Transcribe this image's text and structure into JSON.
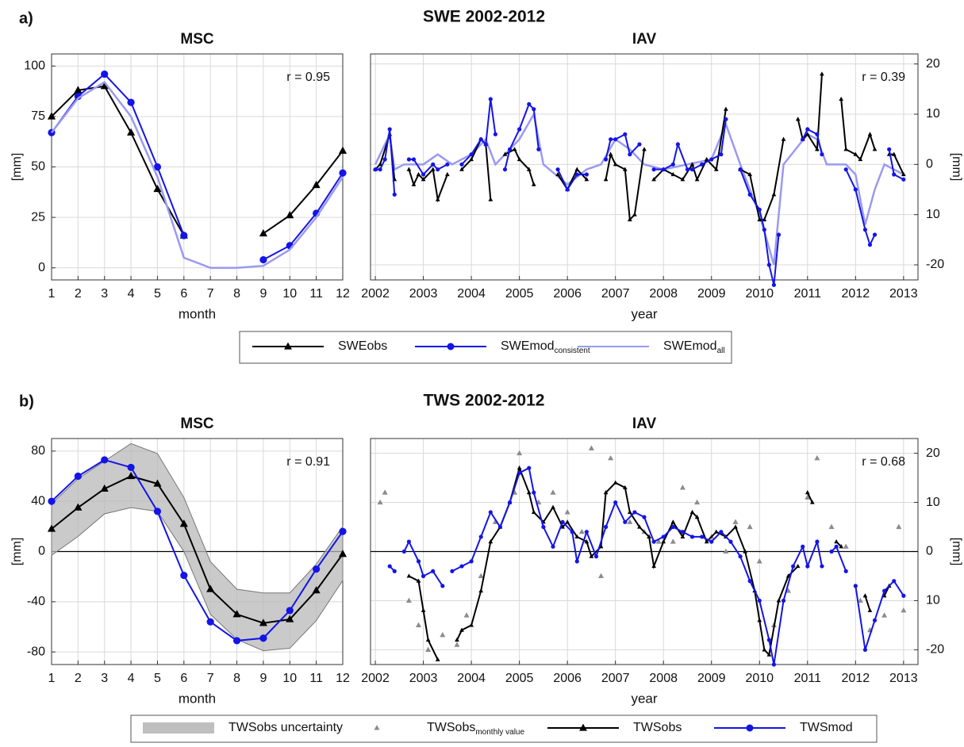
{
  "panels": [
    {
      "label": "a)",
      "title": "SWE 2002-2012"
    },
    {
      "label": "b)",
      "title": "TWS 2002-2012"
    }
  ],
  "chart_data": [
    {
      "type": "line",
      "title": "MSC",
      "xlabel": "month",
      "ylabel": "[mm]",
      "annotation": "r = 0.95",
      "x": [
        1,
        2,
        3,
        4,
        5,
        6,
        7,
        8,
        9,
        10,
        11,
        12
      ],
      "xlim": [
        1,
        12
      ],
      "xticks": [
        1,
        2,
        3,
        4,
        5,
        6,
        7,
        8,
        9,
        10,
        11,
        12
      ],
      "ylim": [
        -6,
        106
      ],
      "yticks": [
        0,
        25,
        50,
        75,
        100
      ],
      "grid": true,
      "series": [
        {
          "name": "SWEobs",
          "color": "#000000",
          "marker": "triangle",
          "values": [
            75,
            88,
            90,
            67,
            39,
            16,
            null,
            null,
            17,
            26,
            41,
            58
          ]
        },
        {
          "name": "SWEmod",
          "name_sub": "consistent",
          "color": "#1414e6",
          "marker": "circle",
          "values": [
            67,
            85,
            96,
            82,
            50,
            16,
            null,
            null,
            4,
            11,
            27,
            47
          ]
        },
        {
          "name": "SWEmod",
          "name_sub": "all",
          "color": "#9a9af0",
          "marker": null,
          "values": [
            67,
            84,
            92,
            75,
            45,
            5,
            0,
            0,
            1,
            9,
            25,
            45
          ]
        }
      ]
    },
    {
      "type": "line",
      "title": "IAV",
      "xlabel": "year",
      "ylabel": "[mm]",
      "annotation": "r = 0.39",
      "yaxis_side": "right",
      "xlim": [
        2001.9,
        2013.3
      ],
      "xticks": [
        2002,
        2003,
        2004,
        2005,
        2006,
        2007,
        2008,
        2009,
        2010,
        2011,
        2012,
        2013
      ],
      "ylim": [
        -23,
        22
      ],
      "yticks": [
        20,
        10,
        0,
        {
          "value": -10,
          "label": "10"
        },
        -20
      ],
      "grid": true,
      "series": [
        {
          "name": "SWEmod",
          "name_sub": "all",
          "color": "#9a9af0",
          "marker": null,
          "x": [
            2002.0,
            2002.3,
            2002.4,
            2002.6,
            2003.0,
            2003.3,
            2003.6,
            2004.0,
            2004.3,
            2004.5,
            2005.0,
            2005.3,
            2005.5,
            2006.0,
            2006.4,
            2006.7,
            2007.0,
            2007.3,
            2007.6,
            2008.0,
            2008.5,
            2009.0,
            2009.3,
            2009.6,
            2010.0,
            2010.3,
            2010.5,
            2011.0,
            2011.2,
            2011.4,
            2011.8,
            2012.0,
            2012.2,
            2012.4,
            2012.6,
            2013.0
          ],
          "values": [
            0,
            6,
            -1,
            0,
            0,
            2,
            0,
            2,
            5,
            0,
            5,
            10,
            0,
            -4,
            -1,
            0,
            5,
            3,
            0,
            -1,
            0,
            1,
            8,
            0,
            -10,
            -20,
            0,
            6,
            5,
            0,
            0,
            -2,
            -12,
            -5,
            0,
            -2
          ]
        },
        {
          "name": "SWEobs",
          "color": "#000000",
          "marker": "triangle",
          "x": [
            2002.0,
            2002.1,
            2002.3,
            2002.4,
            2002.5,
            2002.7,
            2002.8,
            2002.9,
            2003.0,
            2003.2,
            2003.3,
            2003.5,
            2003.6,
            2003.8,
            2004.0,
            2004.2,
            2004.3,
            2004.4,
            2004.5,
            2004.7,
            2004.9,
            2005.0,
            2005.2,
            2005.3,
            2005.5,
            2005.8,
            2006.0,
            2006.2,
            2006.4,
            2006.6,
            2006.8,
            2006.9,
            2007.0,
            2007.2,
            2007.3,
            2007.4,
            2007.6,
            2007.7,
            2007.8,
            2008.0,
            2008.2,
            2008.4,
            2008.6,
            2008.7,
            2008.9,
            2009.1,
            2009.3,
            2009.4,
            2009.6,
            2009.8,
            2010.0,
            2010.1,
            2010.3,
            2010.5,
            2010.6,
            2010.8,
            2010.9,
            2011.0,
            2011.2,
            2011.3,
            2011.5,
            2011.7,
            2011.8,
            2012.0,
            2012.1,
            2012.3,
            2012.4,
            2012.5,
            2012.7,
            2012.8,
            2013.0
          ],
          "values": [
            -1,
            0,
            6,
            -3,
            null,
            -1,
            -4,
            -2,
            -3,
            -1,
            -7,
            -2,
            null,
            -1,
            1,
            5,
            4,
            -7,
            null,
            2,
            3,
            1,
            -1,
            -4,
            null,
            -2,
            -5,
            -1,
            -3,
            null,
            -3,
            2,
            0,
            -1,
            -11,
            -10,
            3,
            null,
            -3,
            -1,
            -2,
            -3,
            0,
            -3,
            1,
            -1,
            11,
            null,
            -1,
            -2,
            -11,
            -11,
            -6,
            5,
            null,
            9,
            5,
            6,
            3,
            18,
            null,
            13,
            3,
            2,
            1,
            6,
            3,
            null,
            2,
            2,
            -2
          ]
        },
        {
          "name": "SWEmod",
          "name_sub": "consistent",
          "color": "#1414e6",
          "marker": "circle",
          "x": [
            2002.0,
            2002.1,
            2002.2,
            2002.3,
            2002.4,
            2002.5,
            2002.7,
            2002.8,
            2003.0,
            2003.2,
            2003.3,
            2003.5,
            2003.6,
            2003.8,
            2004.0,
            2004.2,
            2004.3,
            2004.4,
            2004.5,
            2004.6,
            2004.7,
            2004.8,
            2005.0,
            2005.2,
            2005.3,
            2005.4,
            2005.6,
            2005.8,
            2006.0,
            2006.2,
            2006.4,
            2006.6,
            2006.8,
            2006.9,
            2007.0,
            2007.2,
            2007.3,
            2007.5,
            2007.6,
            2007.8,
            2008.0,
            2008.2,
            2008.3,
            2008.5,
            2008.6,
            2008.8,
            2009.0,
            2009.2,
            2009.3,
            2009.5,
            2009.6,
            2009.8,
            2010.0,
            2010.1,
            2010.2,
            2010.3,
            2010.4,
            2010.6,
            2010.9,
            2011.0,
            2011.2,
            2011.3,
            2011.5,
            2011.8,
            2012.0,
            2012.2,
            2012.3,
            2012.4,
            2012.5,
            2012.7,
            2012.8,
            2013.0
          ],
          "values": [
            -1,
            -1,
            1,
            7,
            -6,
            null,
            1,
            1,
            -2,
            0,
            -1,
            0,
            null,
            0,
            2,
            5,
            4,
            13,
            6,
            null,
            -1,
            3,
            7,
            12,
            11,
            3,
            null,
            -1,
            -5,
            -2,
            -2,
            null,
            1,
            5,
            5,
            6,
            2,
            4,
            null,
            -1,
            -1,
            0,
            4,
            -1,
            -1,
            0,
            1,
            2,
            9,
            null,
            -1,
            -6,
            -9,
            -13,
            -20,
            -24,
            -14,
            null,
            5,
            7,
            6,
            2,
            null,
            -1,
            -5,
            -13,
            -16,
            -14,
            null,
            3,
            -2,
            -3
          ]
        }
      ]
    },
    {
      "type": "line",
      "title": "MSC",
      "xlabel": "month",
      "ylabel": "[mm]",
      "annotation": "r = 0.91",
      "zero_line": true,
      "x": [
        1,
        2,
        3,
        4,
        5,
        6,
        7,
        8,
        9,
        10,
        11,
        12
      ],
      "xlim": [
        1,
        12
      ],
      "xticks": [
        1,
        2,
        3,
        4,
        5,
        6,
        7,
        8,
        9,
        10,
        11,
        12
      ],
      "ylim": [
        -90,
        90
      ],
      "yticks": [
        -80,
        -40,
        0,
        40,
        80
      ],
      "grid": true,
      "band": {
        "name": "TWSobs uncertainty",
        "color": "#b8b8b8",
        "lower": [
          -3,
          12,
          30,
          35,
          32,
          0,
          -50,
          -70,
          -79,
          -77,
          -55,
          -23
        ],
        "upper": [
          38,
          58,
          72,
          86,
          78,
          43,
          -8,
          -30,
          -33,
          -33,
          -10,
          20
        ]
      },
      "series": [
        {
          "name": "TWSobs",
          "color": "#000000",
          "marker": "triangle",
          "values": [
            18,
            35,
            50,
            60,
            54,
            22,
            -30,
            -50,
            -57,
            -54,
            -31,
            -2
          ]
        },
        {
          "name": "TWSmod",
          "color": "#1414e6",
          "marker": "circle",
          "values": [
            40,
            60,
            73,
            67,
            32,
            -19,
            -56,
            -71,
            -69,
            -47,
            -14,
            16
          ]
        }
      ]
    },
    {
      "type": "line",
      "title": "IAV",
      "xlabel": "year",
      "ylabel": "[mm]",
      "annotation": "r = 0.68",
      "yaxis_side": "right",
      "zero_line": true,
      "xlim": [
        2001.9,
        2013.3
      ],
      "xticks": [
        2002,
        2003,
        2004,
        2005,
        2006,
        2007,
        2008,
        2009,
        2010,
        2011,
        2012,
        2013
      ],
      "ylim": [
        -23,
        23
      ],
      "yticks": [
        20,
        10,
        0,
        {
          "value": -10,
          "label": "10"
        },
        -20
      ],
      "grid": true,
      "series": [
        {
          "name": "TWSobs",
          "name_sub": "monthly value",
          "color": "#8c8c8c",
          "marker": "triangle",
          "line": false,
          "x": [
            2002.1,
            2002.2,
            2002.7,
            2002.9,
            2003.1,
            2003.4,
            2003.7,
            2003.9,
            2004.2,
            2004.5,
            2004.9,
            2005.0,
            2005.4,
            2005.7,
            2006.0,
            2006.3,
            2006.5,
            2006.7,
            2006.9,
            2007.3,
            2007.6,
            2007.9,
            2008.2,
            2008.4,
            2008.7,
            2009.0,
            2009.3,
            2009.5,
            2009.8,
            2010.0,
            2010.3,
            2010.6,
            2011.0,
            2011.2,
            2011.5,
            2011.8,
            2012.1,
            2012.3,
            2012.6,
            2012.9,
            2013.0
          ],
          "values": [
            10,
            12,
            -10,
            -15,
            -20,
            -17,
            -19,
            -13,
            -5,
            6,
            12,
            20,
            10,
            12,
            8,
            4,
            21,
            -5,
            19,
            6,
            4,
            2,
            2,
            13,
            10,
            3,
            0,
            6,
            5,
            -2,
            -15,
            -8,
            11,
            19,
            5,
            1,
            -10,
            -16,
            -13,
            5,
            -12
          ]
        },
        {
          "name": "TWSobs",
          "color": "#000000",
          "marker": "triangle",
          "x": [
            2002.7,
            2002.9,
            2003.0,
            2003.1,
            2003.3,
            2003.5,
            2003.7,
            2003.8,
            2004.0,
            2004.2,
            2004.4,
            2004.6,
            2004.8,
            2005.0,
            2005.2,
            2005.3,
            2005.5,
            2005.7,
            2005.9,
            2006.0,
            2006.2,
            2006.4,
            2006.5,
            2006.7,
            2006.8,
            2007.0,
            2007.2,
            2007.3,
            2007.5,
            2007.7,
            2007.8,
            2008.0,
            2008.2,
            2008.4,
            2008.6,
            2008.7,
            2008.9,
            2009.1,
            2009.3,
            2009.5,
            2009.7,
            2009.9,
            2010.0,
            2010.1,
            2010.2,
            2010.4,
            2010.6,
            2010.8,
            2010.9,
            2011.0,
            2011.1,
            2011.3,
            2011.6,
            2011.7,
            2011.9,
            2012.2,
            2012.3,
            2012.4,
            2012.6,
            2012.7
          ],
          "values": [
            -5,
            -6,
            -12,
            -18,
            -22,
            null,
            -18,
            -16,
            -15,
            -8,
            2,
            5,
            10,
            17,
            12,
            8,
            6,
            9,
            5,
            6,
            3,
            2,
            -1,
            1,
            12,
            14,
            13,
            8,
            5,
            3,
            -3,
            2,
            6,
            3,
            8,
            7,
            2,
            4,
            3,
            5,
            0,
            -8,
            -14,
            -20,
            -21,
            -10,
            -5,
            -3,
            null,
            12,
            10,
            null,
            2,
            1,
            null,
            -9,
            -12,
            null,
            -9,
            -7
          ]
        },
        {
          "name": "TWSmod",
          "color": "#1414e6",
          "marker": "circle",
          "x": [
            2002.3,
            2002.4,
            2002.5,
            2002.6,
            2002.7,
            2002.9,
            2003.0,
            2003.2,
            2003.4,
            2003.5,
            2003.6,
            2003.8,
            2004.0,
            2004.2,
            2004.4,
            2004.6,
            2004.8,
            2005.0,
            2005.2,
            2005.3,
            2005.5,
            2005.7,
            2005.9,
            2006.1,
            2006.2,
            2006.4,
            2006.6,
            2006.8,
            2007.0,
            2007.2,
            2007.4,
            2007.6,
            2007.8,
            2008.0,
            2008.2,
            2008.4,
            2008.6,
            2008.8,
            2009.0,
            2009.2,
            2009.4,
            2009.6,
            2009.8,
            2010.0,
            2010.2,
            2010.3,
            2010.5,
            2010.7,
            2010.9,
            2011.0,
            2011.2,
            2011.3,
            2011.4,
            2011.5,
            2011.6,
            2011.8,
            2011.9,
            2012.0,
            2012.2,
            2012.4,
            2012.6,
            2012.8,
            2013.0
          ],
          "values": [
            -3,
            -4,
            null,
            0,
            2,
            -2,
            -5,
            -4,
            -7,
            null,
            -4,
            -3,
            -2,
            3,
            8,
            5,
            10,
            16,
            17,
            12,
            5,
            1,
            6,
            4,
            -2,
            4,
            -1,
            5,
            10,
            6,
            8,
            7,
            2,
            3,
            5,
            4,
            3,
            3,
            2,
            4,
            2,
            -1,
            -6,
            -10,
            -18,
            -23,
            -10,
            -3,
            1,
            -3,
            2,
            -3,
            null,
            0,
            1,
            -4,
            null,
            -7,
            -20,
            -14,
            -8,
            -6,
            -9
          ]
        }
      ]
    }
  ]
}
